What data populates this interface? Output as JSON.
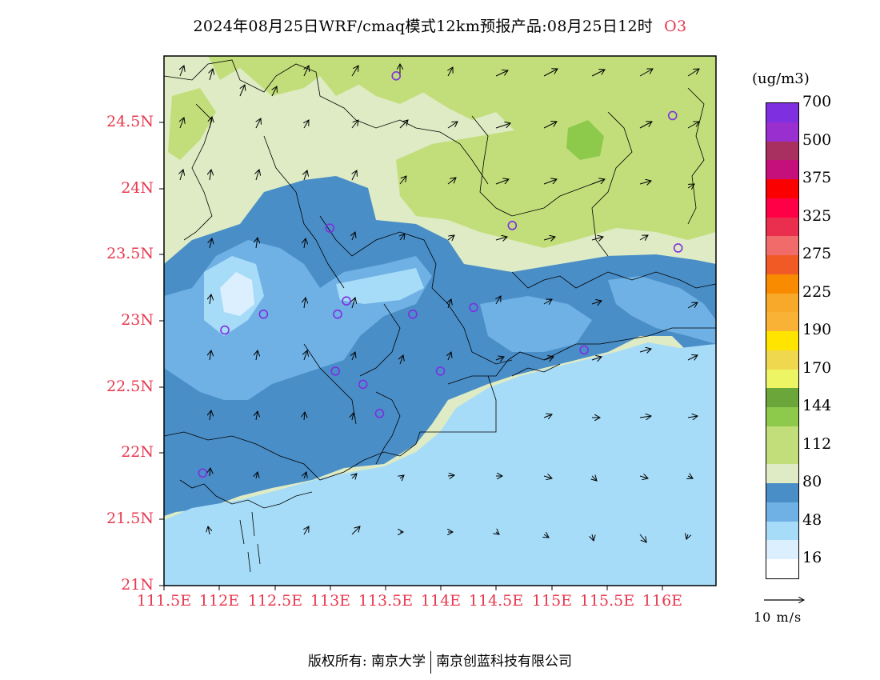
{
  "title": {
    "main": "2024年08月25日WRF/cmaq模式12km预报产品:08月25日12时",
    "species": "O3"
  },
  "axes": {
    "y_ticks": [
      "21N",
      "21.5N",
      "22N",
      "22.5N",
      "23N",
      "23.5N",
      "24N",
      "24.5N"
    ],
    "x_ticks": [
      "111.5E",
      "112E",
      "112.5E",
      "113E",
      "113.5E",
      "114E",
      "114.5E",
      "115E",
      "115.5E",
      "116E"
    ]
  },
  "colorbar": {
    "unit": "(ug/m3)",
    "colors": [
      "#ffffff",
      "#dcefff",
      "#a6dcf8",
      "#6fb1e4",
      "#4a8ec8",
      "#deebc4",
      "#c2de7a",
      "#c2de7a",
      "#8dc94b",
      "#6aa63a",
      "#eef565",
      "#f0d84e",
      "#ffe400",
      "#f9b136",
      "#f9a92a",
      "#f98b00",
      "#f15a25",
      "#f26b6b",
      "#ea2e4d",
      "#ff0046",
      "#fb0000",
      "#c50f7a",
      "#a83060",
      "#9a2fd0",
      "#7e2fe0"
    ],
    "labels": [
      "16",
      "48",
      "80",
      "112",
      "144",
      "170",
      "190",
      "225",
      "275",
      "325",
      "375",
      "500",
      "700"
    ]
  },
  "vector_legend": {
    "label": "10 m/s"
  },
  "copyright": {
    "left": "版权所有: 南京大学",
    "right": "南京创蓝科技有限公司"
  },
  "colors": {
    "axis_label": "#e8384f",
    "station_marker": "#7e2fe0"
  },
  "stations": [
    [
      113.6,
      24.85
    ],
    [
      116.1,
      24.55
    ],
    [
      114.65,
      23.72
    ],
    [
      116.15,
      23.55
    ],
    [
      113.0,
      23.7
    ],
    [
      113.15,
      23.15
    ],
    [
      113.07,
      23.05
    ],
    [
      112.4,
      23.05
    ],
    [
      113.75,
      23.05
    ],
    [
      114.3,
      23.1
    ],
    [
      112.05,
      22.93
    ],
    [
      113.05,
      22.62
    ],
    [
      113.3,
      22.52
    ],
    [
      114.0,
      22.62
    ],
    [
      115.3,
      22.78
    ],
    [
      113.45,
      22.3
    ],
    [
      111.85,
      21.85
    ]
  ]
}
